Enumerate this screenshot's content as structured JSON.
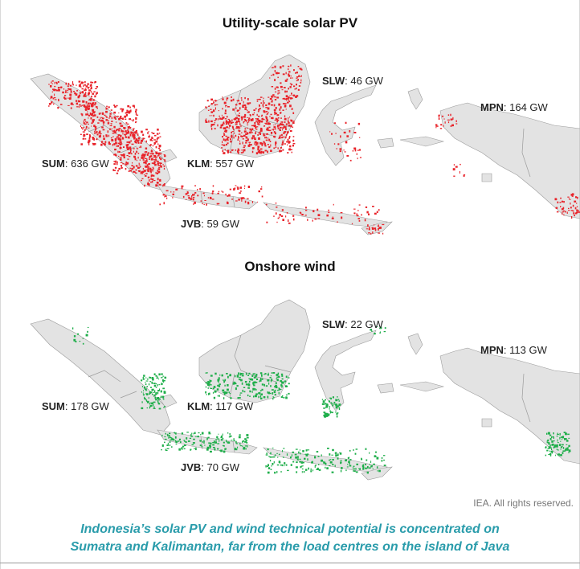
{
  "panels": [
    {
      "title": "Utility-scale solar PV",
      "resource_color": "#e8232a",
      "labels": [
        {
          "code": "SUM",
          "value": "636 GW"
        },
        {
          "code": "KLM",
          "value": "557 GW"
        },
        {
          "code": "SLW",
          "value": "46 GW"
        },
        {
          "code": "MPN",
          "value": "164 GW"
        },
        {
          "code": "JVB",
          "value": "59 GW"
        }
      ]
    },
    {
      "title": "Onshore wind",
      "resource_color": "#1fae4a",
      "labels": [
        {
          "code": "SUM",
          "value": "178 GW"
        },
        {
          "code": "KLM",
          "value": "117 GW"
        },
        {
          "code": "SLW",
          "value": "22 GW"
        },
        {
          "code": "MPN",
          "value": "113 GW"
        },
        {
          "code": "JVB",
          "value": "70 GW"
        }
      ]
    }
  ],
  "land_color": "#e3e3e3",
  "border_color": "#9b9b9b",
  "note": "IEA. All rights reserved.",
  "caption": {
    "line1": "Indonesia’s solar PV and wind technical potential is concentrated on",
    "line2": "Sumatra and Kalimantan, far from the load centres on the island of Java"
  }
}
